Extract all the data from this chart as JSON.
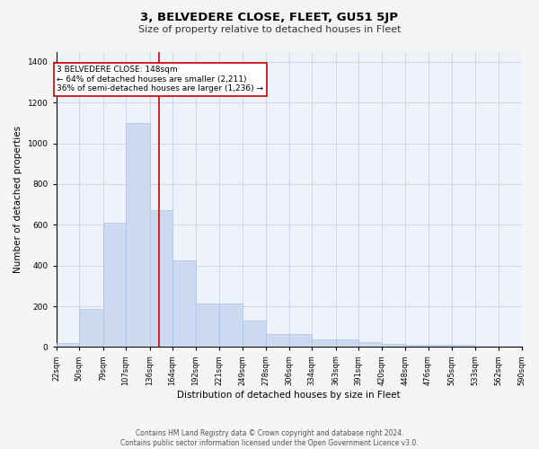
{
  "title": "3, BELVEDERE CLOSE, FLEET, GU51 5JP",
  "subtitle": "Size of property relative to detached houses in Fleet",
  "xlabel": "Distribution of detached houses by size in Fleet",
  "ylabel": "Number of detached properties",
  "bar_color": "#ccd9f0",
  "bar_edge_color": "#a8c4e0",
  "bin_edges": [
    22,
    50,
    79,
    107,
    136,
    164,
    192,
    221,
    249,
    278,
    306,
    334,
    363,
    391,
    420,
    448,
    476,
    505,
    533,
    562,
    590
  ],
  "bar_heights": [
    20,
    185,
    610,
    1100,
    670,
    425,
    215,
    215,
    130,
    65,
    65,
    35,
    35,
    25,
    15,
    10,
    10,
    10,
    0,
    0
  ],
  "property_size": 148,
  "ylim": [
    0,
    1450
  ],
  "yticks": [
    0,
    200,
    400,
    600,
    800,
    1000,
    1200,
    1400
  ],
  "annotation_lines": [
    "3 BELVEDERE CLOSE: 148sqm",
    "← 64% of detached houses are smaller (2,211)",
    "36% of semi-detached houses are larger (1,236) →"
  ],
  "annotation_box_color": "#ffffff",
  "annotation_box_edge_color": "#cc0000",
  "red_line_color": "#cc0000",
  "grid_color": "#d0d8e8",
  "background_color": "#eef2fa",
  "fig_background_color": "#f5f5f5",
  "footer_line1": "Contains HM Land Registry data © Crown copyright and database right 2024.",
  "footer_line2": "Contains public sector information licensed under the Open Government Licence v3.0."
}
